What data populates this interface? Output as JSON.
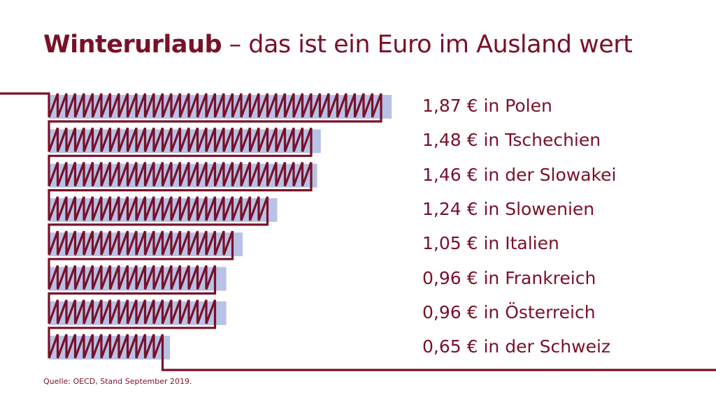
{
  "title": {
    "bold": "Winterurlaub",
    "rest": " – das ist ein Euro im Ausland wert"
  },
  "chart_data": {
    "type": "bar",
    "orientation": "horizontal",
    "categories": [
      "Polen",
      "Tschechien",
      "der Slowakei",
      "Slowenien",
      "Italien",
      "Frankreich",
      "Österreich",
      "der Schweiz"
    ],
    "values": [
      1.87,
      1.48,
      1.46,
      1.24,
      1.05,
      0.96,
      0.96,
      0.65
    ],
    "labels": [
      "1,87 € in Polen",
      "1,48 € in Tschechien",
      "1,46 € in der Slowakei",
      "1,24 € in Slowenien",
      "1,05 € in Italien",
      "0,96 € in Frankreich",
      "0,96 € in Österreich",
      "0,65 € in der Schweiz"
    ],
    "colors": {
      "bar_fill": "#b7c2e6",
      "zigzag": "#7a1028"
    }
  },
  "source": "Quelle: OECD, Stand September 2019."
}
